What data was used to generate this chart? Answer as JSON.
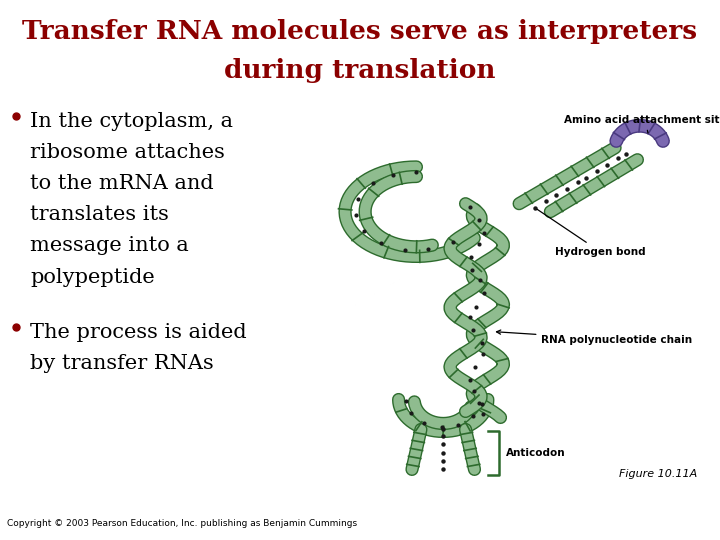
{
  "bg_color": "#f5c9a0",
  "title_line1": "Transfer RNA molecules serve as interpreters",
  "title_line2": "during translation",
  "title_color": "#8b0000",
  "title_fontsize": 19,
  "body_bg": "#ffffff",
  "bullet_color": "#8b0000",
  "bullet_text1_lines": [
    "In the cytoplasm, a",
    "ribosome attaches",
    "to the mRNA and",
    "translates its",
    "message into a",
    "polypeptide"
  ],
  "bullet_text2_lines": [
    "The process is aided",
    "by transfer RNAs"
  ],
  "body_fontsize": 15,
  "label_amino": "Amino acid attachment site",
  "label_hydrogen": "Hydrogen bond",
  "label_rna": "RNA polynucleotide chain",
  "label_anticodon": "Anticodon",
  "label_figure": "Figure 10.11A",
  "copyright_text": "Copyright © 2003 Pearson Education, Inc. publishing as Benjamin Cummings",
  "tRNA_green": "#8fbc8f",
  "tRNA_outline": "#2d6b2d",
  "tRNA_purple": "#7b68b0",
  "dot_color": "#1a1a1a",
  "red_bar_color": "#aa0000"
}
